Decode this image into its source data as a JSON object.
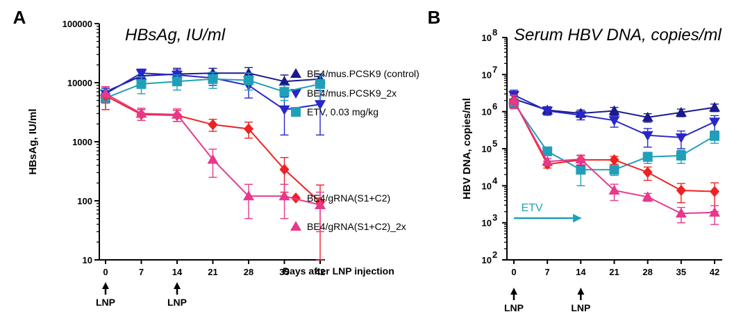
{
  "chart_data": [
    {
      "type": "line",
      "panel_label": "A",
      "title": "HBsAg, IU/ml",
      "ylabel": "HBsAg, IU/ml",
      "xlabel": "Days after LNP injection",
      "yscale": "log",
      "ylim": [
        10,
        100000
      ],
      "y_ticks": [
        "10",
        "100",
        "1000",
        "10000",
        "100000"
      ],
      "x": [
        0,
        7,
        14,
        21,
        28,
        35,
        42
      ],
      "x_ticks": [
        "0",
        "7",
        "14",
        "21",
        "28",
        "35",
        "42"
      ],
      "annotations": [
        {
          "text": "LNP",
          "x": 0
        },
        {
          "text": "LNP",
          "x": 14
        }
      ],
      "legend_position": "right",
      "series": [
        {
          "name": "BE4/mus.PCSK9 (control)",
          "color": "#1a1a8c",
          "marker": "triangle-up",
          "values": [
            7000,
            13000,
            14000,
            14500,
            14500,
            10500,
            11500
          ],
          "err": [
            1500,
            3000,
            3500,
            3000,
            3500,
            3000,
            2500
          ]
        },
        {
          "name": "BE4/mus.PCSK9_2x",
          "color": "#2727c9",
          "marker": "triangle-down",
          "values": [
            6500,
            14500,
            13500,
            12000,
            9000,
            3500,
            4300
          ],
          "err": [
            1500,
            2500,
            3000,
            3000,
            3500,
            2200,
            3000
          ]
        },
        {
          "name": "ETV, 0.03 mg/kg",
          "color": "#20a0b8",
          "marker": "square",
          "values": [
            5500,
            9500,
            10500,
            11500,
            11000,
            7000,
            9500
          ],
          "err": [
            2000,
            3000,
            3000,
            3500,
            3500,
            2000,
            3500
          ]
        },
        {
          "name": "BE4/gRNA(S1+C2)",
          "color": "#ee2222",
          "marker": "diamond",
          "values": [
            6000,
            2900,
            2800,
            1950,
            1650,
            340,
            95
          ],
          "err": [
            2500,
            600,
            600,
            450,
            500,
            200,
            90
          ]
        },
        {
          "name": "BE4/gRNA(S1+C2)_2x",
          "color": "#e8378c",
          "marker": "triangle-up",
          "values": [
            6500,
            3000,
            2900,
            500,
            120,
            120,
            85
          ],
          "err": [
            2000,
            700,
            700,
            250,
            70,
            70,
            55
          ]
        }
      ]
    },
    {
      "type": "line",
      "panel_label": "B",
      "title": "Serum HBV DNA, copies/ml",
      "ylabel": "HBV DNA, copies/ml",
      "xlabel": "",
      "yscale": "log",
      "ylim": [
        100,
        100000000
      ],
      "y_ticks": [
        "10",
        "10",
        "10",
        "10",
        "10",
        "10",
        "10"
      ],
      "y_tick_exponents": [
        "2",
        "3",
        "4",
        "5",
        "6",
        "7",
        "8"
      ],
      "x": [
        0,
        7,
        14,
        21,
        28,
        35,
        42
      ],
      "x_ticks": [
        "0",
        "7",
        "14",
        "21",
        "28",
        "35",
        "42"
      ],
      "annotations": [
        {
          "text": "LNP",
          "x": 0
        },
        {
          "text": "LNP",
          "x": 14
        },
        {
          "text": "ETV",
          "x_start": 0,
          "x_end": 14
        }
      ],
      "series": [
        {
          "color": "#1a1a8c",
          "marker": "triangle-up",
          "values": [
            2200000,
            1100000,
            900000,
            1050000,
            700000,
            950000,
            1300000
          ],
          "err": [
            600000,
            250000,
            200000,
            250000,
            180000,
            220000,
            300000
          ]
        },
        {
          "color": "#2727c9",
          "marker": "triangle-down",
          "values": [
            2800000,
            1050000,
            800000,
            580000,
            230000,
            200000,
            530000
          ],
          "err": [
            1000000,
            250000,
            200000,
            200000,
            120000,
            100000,
            250000
          ]
        },
        {
          "color": "#20a0b8",
          "marker": "square",
          "values": [
            1700000,
            85000,
            27000,
            27000,
            60000,
            65000,
            220000
          ],
          "err": [
            500000,
            20000,
            17000,
            8000,
            20000,
            25000,
            80000
          ]
        },
        {
          "color": "#ee2222",
          "marker": "diamond",
          "values": [
            2000000,
            38000,
            50000,
            50000,
            23000,
            7500,
            7000
          ],
          "err": [
            700000,
            8000,
            15000,
            12000,
            9000,
            4000,
            5000
          ]
        },
        {
          "color": "#e8378c",
          "marker": "triangle-up",
          "values": [
            2000000,
            45000,
            52000,
            7500,
            5000,
            1800,
            1900
          ],
          "err": [
            800000,
            10000,
            15000,
            3500,
            1200,
            800,
            1000
          ]
        }
      ]
    }
  ]
}
